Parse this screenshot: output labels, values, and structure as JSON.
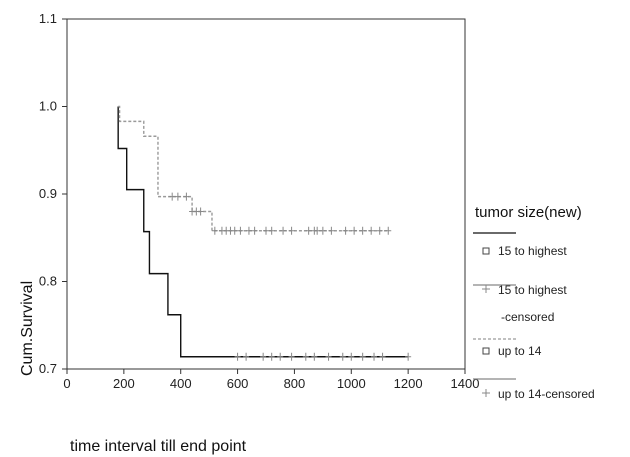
{
  "chart_data": {
    "type": "line",
    "subtype": "kaplan-meier step survival curve",
    "xlabel": "time interval till end point",
    "ylabel": "Cum.Survival",
    "xlim": [
      0,
      1400
    ],
    "ylim": [
      0.7,
      1.1
    ],
    "x_ticks": [
      0,
      200,
      400,
      600,
      800,
      1000,
      1200,
      1400
    ],
    "y_ticks": [
      0.7,
      0.8,
      0.9,
      1.0,
      1.1
    ],
    "y_tick_labels": [
      "0.7",
      "0.8",
      "0.9",
      "1.0",
      "1.1"
    ],
    "grid": false,
    "legend_placement": "right",
    "legend": {
      "title": "tumor size(new)",
      "entries": [
        {
          "label": "15 to highest",
          "label2": "",
          "symbol": "square",
          "style": "solid",
          "color": "#111111"
        },
        {
          "label": "15 to highest",
          "label2": "-censored",
          "symbol": "plus",
          "style": "none",
          "color": "#888888"
        },
        {
          "label": "up to 14",
          "label2": "",
          "symbol": "square",
          "style": "dashed",
          "color": "#9a9a9a"
        },
        {
          "label": "up to 14-censored",
          "label2": "",
          "symbol": "plus",
          "style": "solid",
          "color": "#888888"
        }
      ]
    },
    "series": [
      {
        "name": "15 to highest",
        "color": "#111111",
        "style": "solid",
        "steps": [
          [
            180,
            1.0
          ],
          [
            180,
            0.952
          ],
          [
            210,
            0.905
          ],
          [
            270,
            0.857
          ],
          [
            290,
            0.809
          ],
          [
            355,
            0.762
          ],
          [
            400,
            0.714
          ],
          [
            1200,
            0.714
          ]
        ],
        "censored": [
          600,
          630,
          690,
          720,
          750,
          790,
          840,
          870,
          920,
          970,
          1000,
          1040,
          1080,
          1110,
          1200
        ]
      },
      {
        "name": "up to 14",
        "color": "#9a9a9a",
        "style": "dashed",
        "steps": [
          [
            180,
            1.0
          ],
          [
            185,
            0.983
          ],
          [
            270,
            0.966
          ],
          [
            320,
            0.897
          ],
          [
            440,
            0.88
          ],
          [
            510,
            0.858
          ],
          [
            1130,
            0.858
          ]
        ],
        "censored": [
          370,
          390,
          420,
          440,
          455,
          470,
          520,
          545,
          560,
          575,
          590,
          610,
          640,
          660,
          700,
          720,
          760,
          790,
          850,
          870,
          880,
          900,
          930,
          980,
          1010,
          1040,
          1070,
          1100,
          1130
        ]
      }
    ]
  }
}
